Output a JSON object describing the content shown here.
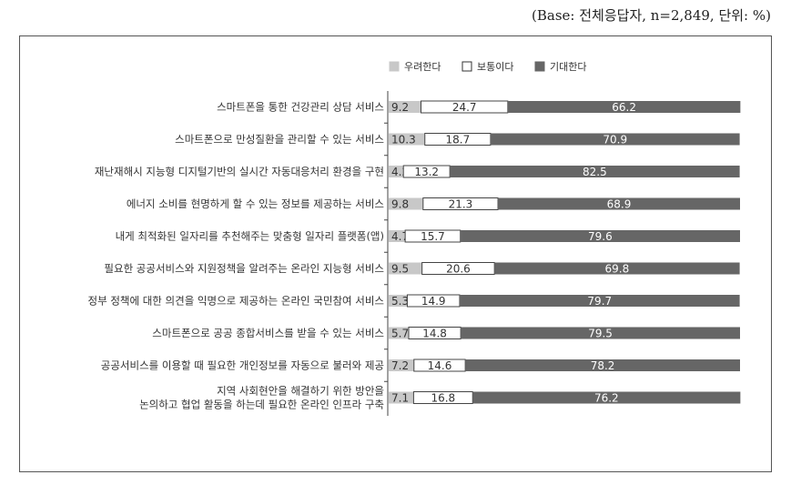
{
  "base_note": "(Base: 전체응답자, n=2,849, 단위: %)",
  "chart_data": {
    "type": "bar",
    "stacked": true,
    "orientation": "horizontal",
    "legend_position": "top-right",
    "grid": false,
    "xlim": [
      0,
      100
    ],
    "categories": [
      [
        "스마트폰을 통한 건강관리 상담 서비스"
      ],
      [
        "스마트폰으로 만성질환을 관리할 수 있는 서비스"
      ],
      [
        "재난재해시 지능형 디지털기반의 실시간 자동대응처리 환경을 구현"
      ],
      [
        "에너지 소비를 현명하게 할 수 있는 정보를 제공하는 서비스"
      ],
      [
        "내게 최적화된 일자리를 추천해주는 맞춤형 일자리 플랫폼(앱)"
      ],
      [
        "필요한 공공서비스와 지원정책을 알려주는 온라인 지능형 서비스"
      ],
      [
        "정부 정책에 대한 의견을 익명으로 제공하는 온라인 국민참여 서비스"
      ],
      [
        "스마트폰으로 공공 종합서비스를 받을 수 있는 서비스"
      ],
      [
        "공공서비스를 이용할 때 필요한 개인정보를 자동으로 불러와 제공"
      ],
      [
        "지역 사회현안을 해결하기 위한 방안을",
        "논의하고 협업 활동을 하는데 필요한 온라인 인프라 구축"
      ]
    ],
    "series": [
      {
        "name": "우려한다",
        "color": "#c8c8c8",
        "label_color": "#333333",
        "values": [
          9.2,
          10.3,
          4.2,
          9.8,
          4.7,
          9.5,
          5.3,
          5.7,
          7.2,
          7.1
        ]
      },
      {
        "name": "보통이다",
        "color": "#ffffff",
        "label_color": "#333333",
        "values": [
          24.7,
          18.7,
          13.2,
          21.3,
          15.7,
          20.6,
          14.9,
          14.8,
          14.6,
          16.8
        ]
      },
      {
        "name": "기대한다",
        "color": "#666666",
        "label_color": "#ffffff",
        "values": [
          66.2,
          70.9,
          82.5,
          68.9,
          79.6,
          69.8,
          79.7,
          79.5,
          78.2,
          76.2
        ]
      }
    ]
  }
}
